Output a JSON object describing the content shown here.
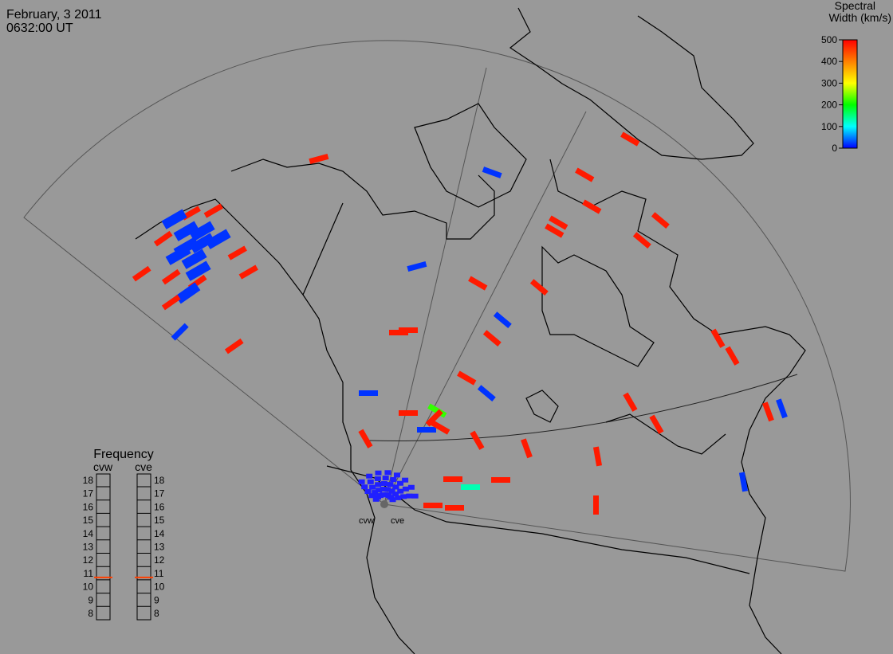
{
  "header": {
    "date": "February, 3 2011",
    "time": "0632:00 UT"
  },
  "colorbar": {
    "title_line1": "Spectral",
    "title_line2": "Width (km/s)",
    "range": [
      0,
      500
    ],
    "ticks": [
      0,
      100,
      200,
      300,
      400,
      500
    ]
  },
  "frequency_panel": {
    "title": "Frequency",
    "radars": [
      "cvw",
      "cve"
    ],
    "range": [
      8,
      18
    ],
    "ticks": [
      8,
      9,
      10,
      11,
      12,
      13,
      14,
      15,
      16,
      17,
      18
    ],
    "values": [
      10.7,
      10.7
    ]
  },
  "radar_labels": [
    "cvw",
    "cve"
  ],
  "echoes": [
    480,
    480,
    480,
    20,
    480,
    20,
    20,
    20,
    20,
    20,
    20,
    20,
    20,
    480,
    480,
    480,
    480,
    480,
    20,
    480,
    20,
    480,
    480,
    20,
    480,
    480,
    480,
    480,
    480,
    480,
    20,
    480,
    480,
    20,
    480,
    480,
    480,
    480,
    480,
    480,
    20,
    20,
    480,
    220,
    480,
    20,
    480,
    480,
    480,
    480,
    480,
    480,
    480,
    20,
    480,
    480,
    130,
    480,
    480,
    480,
    480,
    20
  ]
}
